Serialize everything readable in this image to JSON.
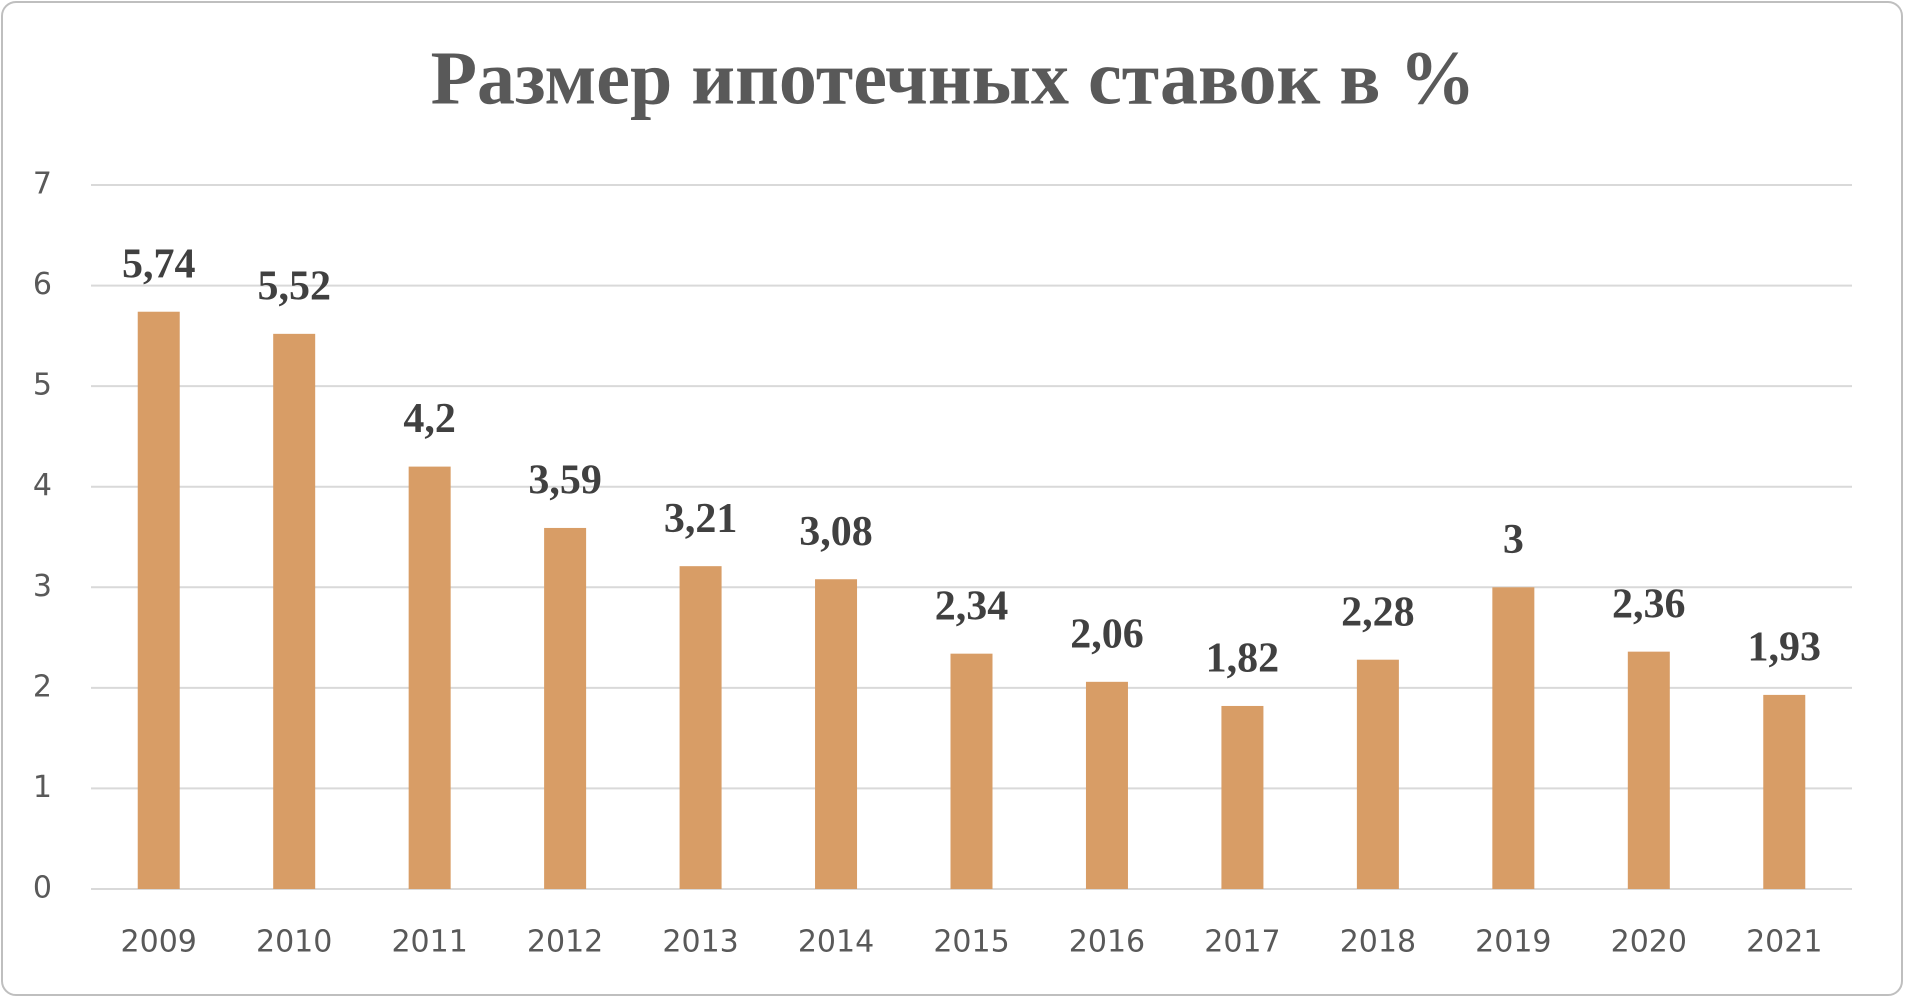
{
  "chart_data": {
    "type": "bar",
    "title": "Размер ипотечных ставок в %",
    "categories": [
      "2009",
      "2010",
      "2011",
      "2012",
      "2013",
      "2014",
      "2015",
      "2016",
      "2017",
      "2018",
      "2019",
      "2020",
      "2021"
    ],
    "values": [
      5.74,
      5.52,
      4.2,
      3.59,
      3.21,
      3.08,
      2.34,
      2.06,
      1.82,
      2.28,
      3,
      2.36,
      1.93
    ],
    "value_labels": [
      "5,74",
      "5,52",
      "4,2",
      "3,59",
      "3,21",
      "3,08",
      "2,34",
      "2,06",
      "1,82",
      "2,28",
      "3",
      "2,36",
      "1,93"
    ],
    "color": "#d89d66",
    "ylim": [
      0,
      7
    ],
    "yticks": [
      0,
      1,
      2,
      3,
      4,
      5,
      6,
      7
    ],
    "grid": true
  }
}
